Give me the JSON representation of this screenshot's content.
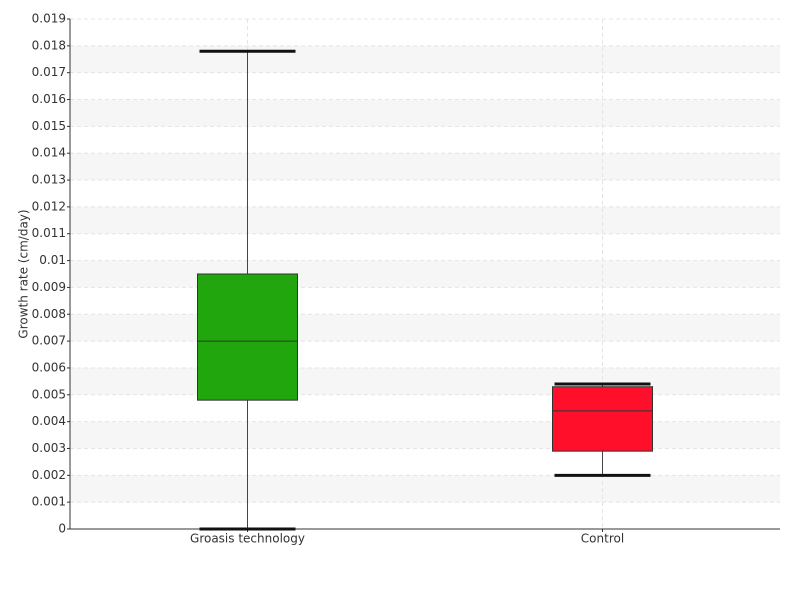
{
  "chart_data": {
    "type": "box",
    "ylabel": "Growth rate (cm/day)",
    "categories": [
      "Groasis technology",
      "Control"
    ],
    "boxes": [
      {
        "color": "#22a60e",
        "min": 0,
        "q1": 0.0048,
        "median": 0.007,
        "q3": 0.0095,
        "max": 0.0178
      },
      {
        "color": "#ff0f2a",
        "min": 0.002,
        "q1": 0.0029,
        "median": 0.0044,
        "q3": 0.0053,
        "max": 0.0054
      }
    ],
    "ylim": [
      0,
      0.019
    ],
    "yticks": [
      0,
      0.001,
      0.002,
      0.003,
      0.004,
      0.005,
      0.006,
      0.007,
      0.008,
      0.009,
      0.01,
      0.011,
      0.012,
      0.013,
      0.014,
      0.015,
      0.016,
      0.017,
      0.018,
      0.019
    ],
    "grid": true
  }
}
